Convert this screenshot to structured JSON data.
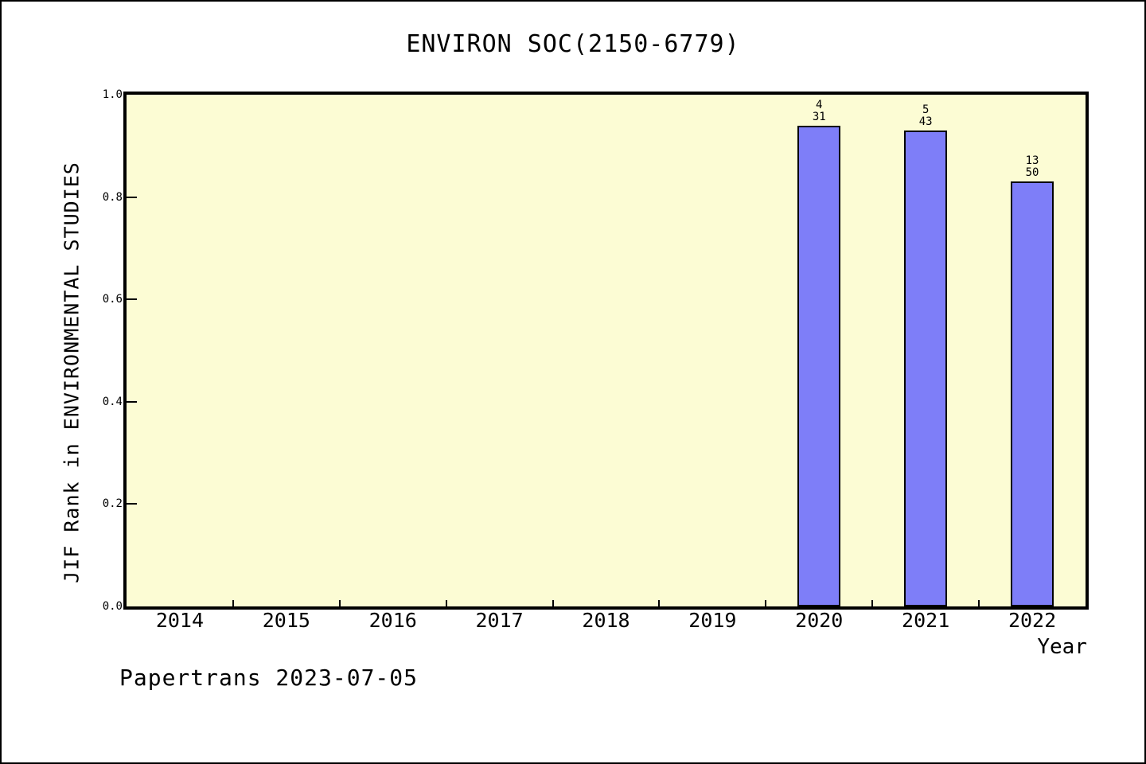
{
  "chart_data": {
    "type": "bar",
    "title": "ENVIRON SOC(2150-6779)",
    "xlabel": "Year",
    "ylabel": "JIF Rank in ENVIRONMENTAL STUDIES",
    "categories": [
      "2014",
      "2015",
      "2016",
      "2017",
      "2018",
      "2019",
      "2020",
      "2021",
      "2022"
    ],
    "values": [
      null,
      null,
      null,
      null,
      null,
      null,
      0.94,
      0.93,
      0.83
    ],
    "bars": [
      {
        "category": "2020",
        "value": 0.94,
        "rank": "4",
        "total": "31"
      },
      {
        "category": "2021",
        "value": 0.93,
        "rank": "5",
        "total": "43"
      },
      {
        "category": "2022",
        "value": 0.83,
        "rank": "13",
        "total": "50"
      }
    ],
    "y_ticks": [
      {
        "value": 0.0,
        "label": "0.0"
      },
      {
        "value": 0.2,
        "label": "0.2"
      },
      {
        "value": 0.4,
        "label": "0.4"
      },
      {
        "value": 0.6,
        "label": "0.6"
      },
      {
        "value": 0.8,
        "label": "0.8"
      },
      {
        "value": 1.0,
        "label": "1.0"
      }
    ],
    "ylim": [
      0,
      1
    ],
    "grid": false,
    "legend": false,
    "colors": {
      "plot_background": "#fcfcd4",
      "bar_fill": "#7e7ef8",
      "bar_border": "#000000",
      "axis": "#000000",
      "text": "#000000"
    }
  },
  "footer": {
    "text": "Papertrans 2023-07-05"
  }
}
